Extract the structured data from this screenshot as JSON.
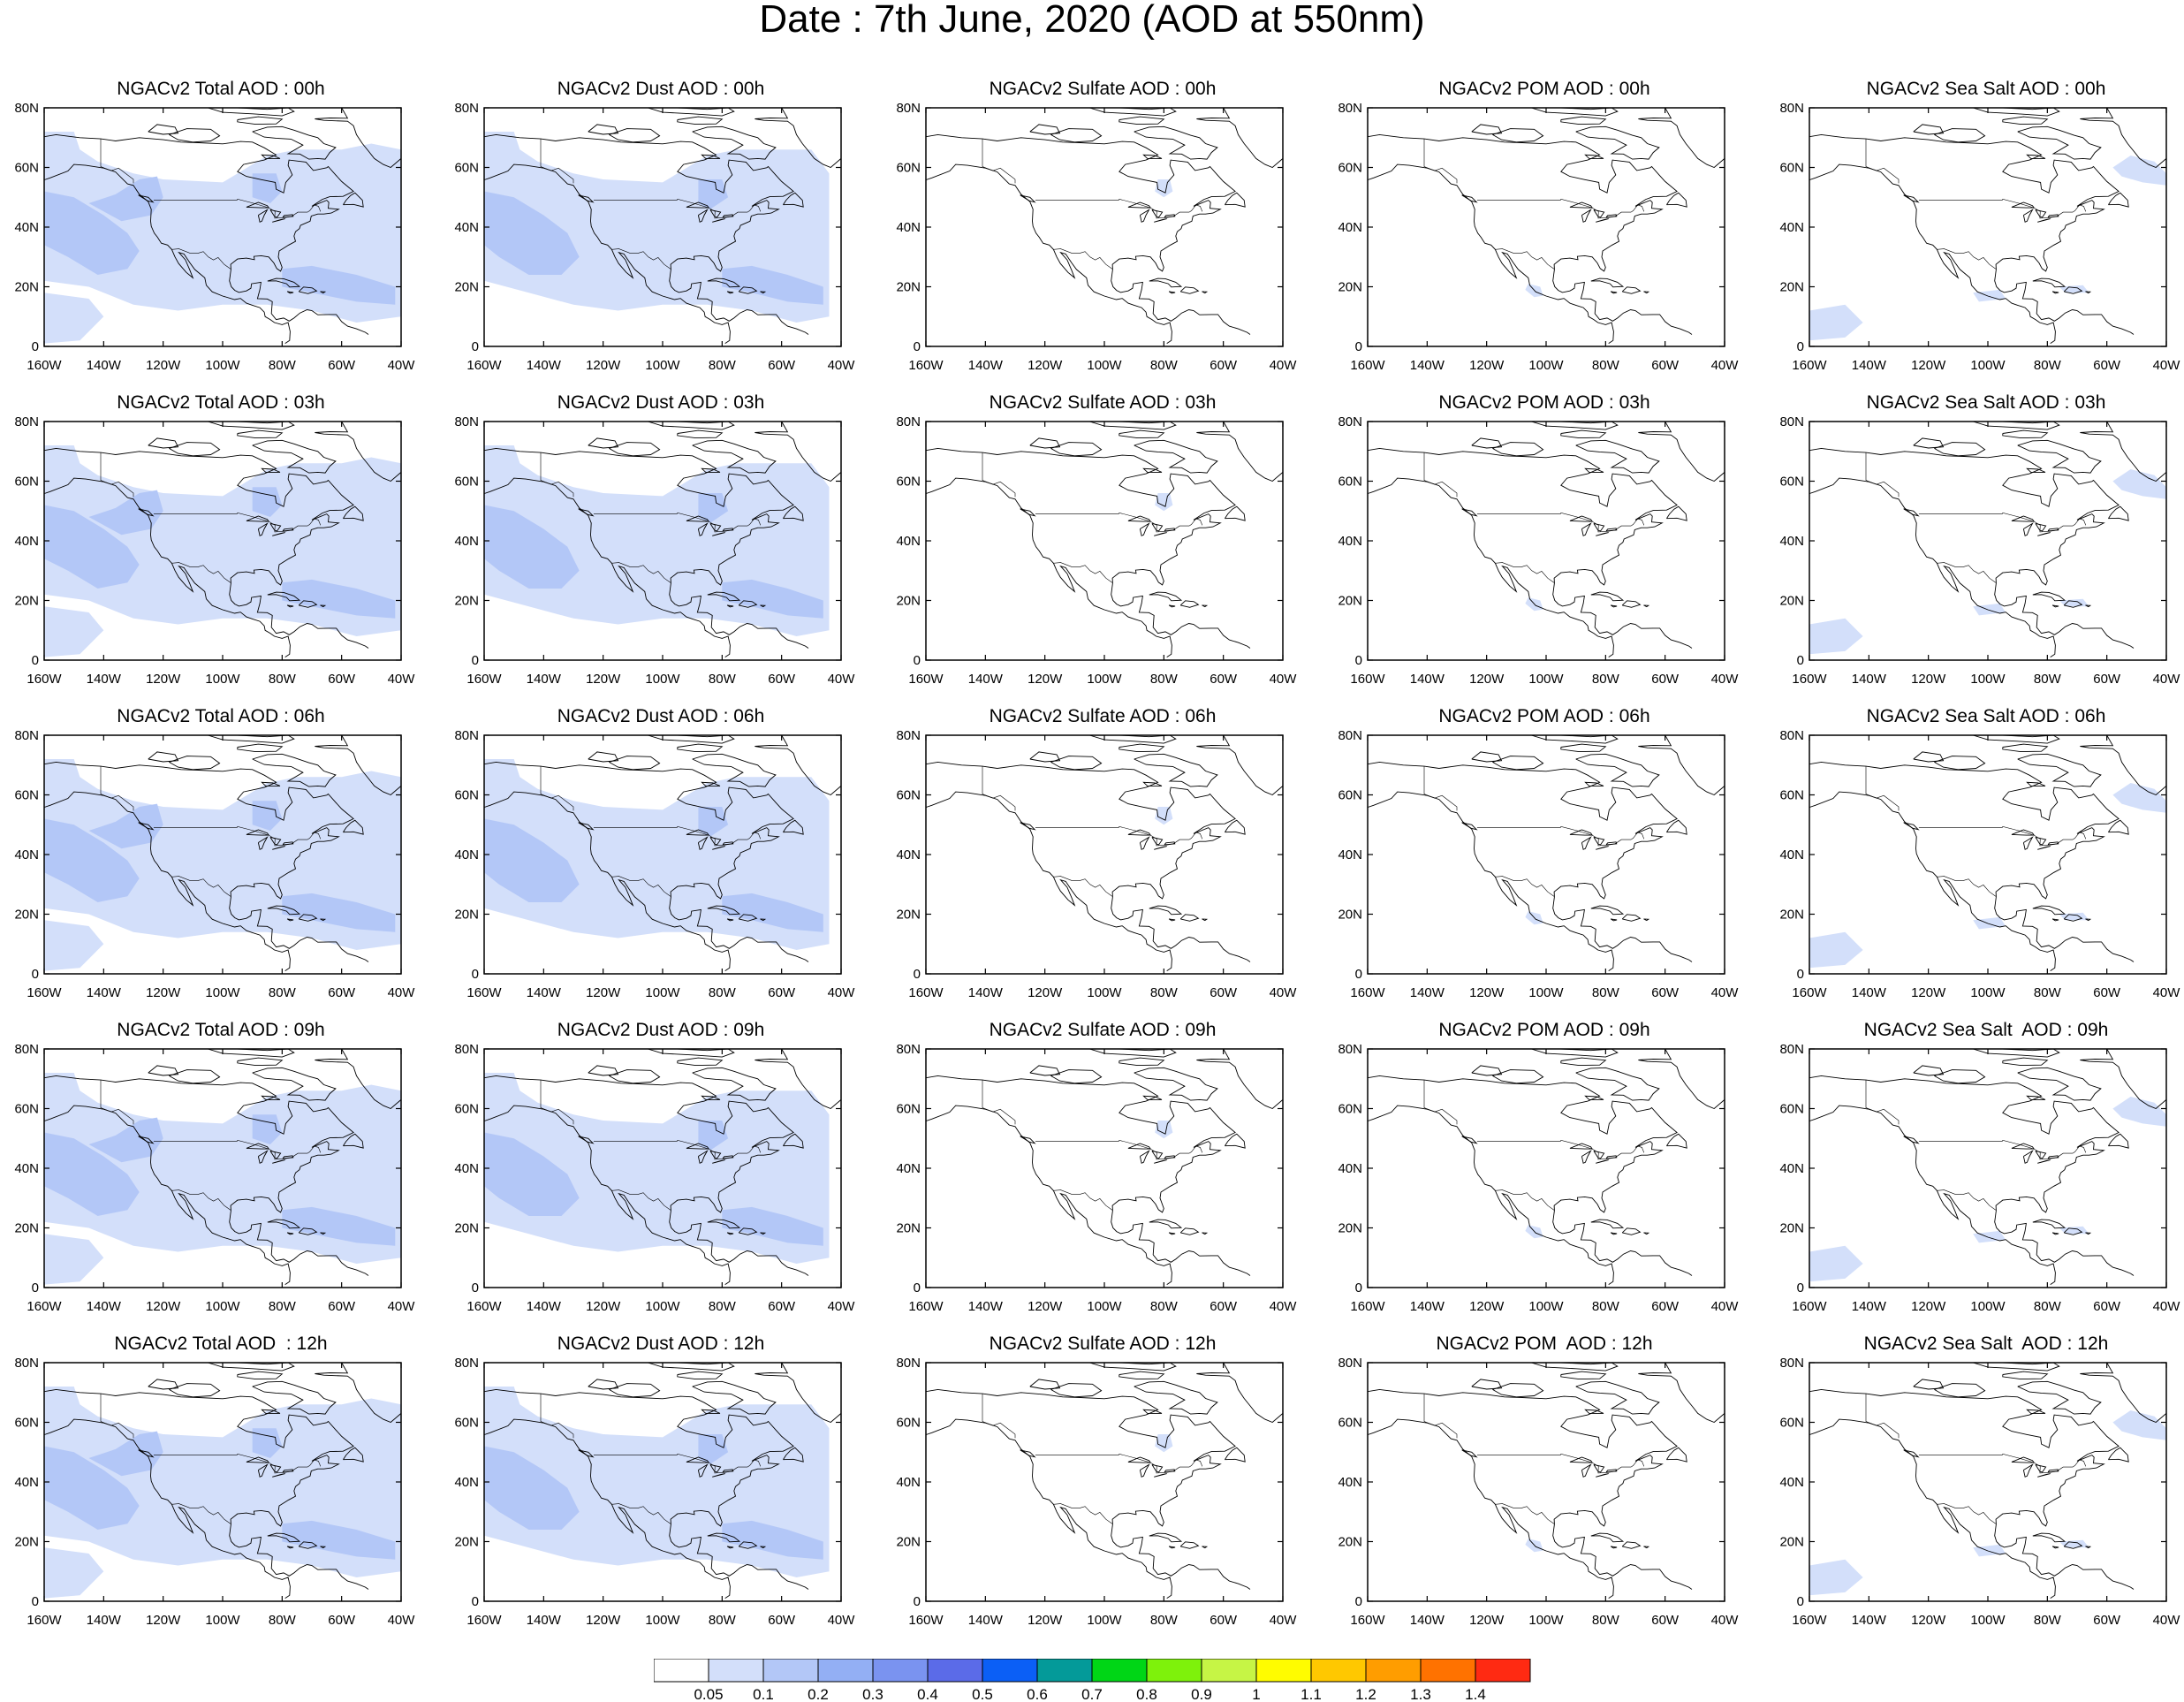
{
  "title": "Date : 7th June, 2020 (AOD at 550nm)",
  "lat_ticks": [
    "80N",
    "60N",
    "40N",
    "20N",
    "0"
  ],
  "lon_ticks": [
    "160W",
    "140W",
    "120W",
    "100W",
    "80W",
    "60W",
    "40W"
  ],
  "panels": [
    [
      {
        "title": "NGACv2 Total AOD : 00h",
        "kind": "total"
      },
      {
        "title": "NGACv2 Dust AOD : 00h",
        "kind": "dust"
      },
      {
        "title": "NGACv2 Sulfate AOD : 00h",
        "kind": "sulfate"
      },
      {
        "title": "NGACv2 POM AOD : 00h",
        "kind": "pom"
      },
      {
        "title": "NGACv2 Sea Salt AOD : 00h",
        "kind": "seasalt"
      }
    ],
    [
      {
        "title": "NGACv2 Total AOD : 03h",
        "kind": "total"
      },
      {
        "title": "NGACv2 Dust AOD : 03h",
        "kind": "dust"
      },
      {
        "title": "NGACv2 Sulfate AOD : 03h",
        "kind": "sulfate"
      },
      {
        "title": "NGACv2 POM AOD : 03h",
        "kind": "pom"
      },
      {
        "title": "NGACv2 Sea Salt AOD : 03h",
        "kind": "seasalt"
      }
    ],
    [
      {
        "title": "NGACv2 Total AOD : 06h",
        "kind": "total"
      },
      {
        "title": "NGACv2 Dust AOD : 06h",
        "kind": "dust"
      },
      {
        "title": "NGACv2 Sulfate AOD : 06h",
        "kind": "sulfate"
      },
      {
        "title": "NGACv2 POM AOD : 06h",
        "kind": "pom"
      },
      {
        "title": "NGACv2 Sea Salt AOD : 06h",
        "kind": "seasalt"
      }
    ],
    [
      {
        "title": "NGACv2 Total AOD : 09h",
        "kind": "total"
      },
      {
        "title": "NGACv2 Dust AOD : 09h",
        "kind": "dust"
      },
      {
        "title": "NGACv2 Sulfate AOD : 09h",
        "kind": "sulfate"
      },
      {
        "title": "NGACv2 POM AOD : 09h",
        "kind": "pom"
      },
      {
        "title": "NGACv2 Sea Salt  AOD : 09h",
        "kind": "seasalt"
      }
    ],
    [
      {
        "title": "NGACv2 Total AOD  : 12h",
        "kind": "total"
      },
      {
        "title": "NGACv2 Dust AOD : 12h",
        "kind": "dust"
      },
      {
        "title": "NGACv2 Sulfate AOD : 12h",
        "kind": "sulfate"
      },
      {
        "title": "NGACv2 POM  AOD : 12h",
        "kind": "pom"
      },
      {
        "title": "NGACv2 Sea Salt  AOD : 12h",
        "kind": "seasalt"
      }
    ]
  ],
  "colorbar": {
    "colors": [
      "#ffffff",
      "#d3dffa",
      "#b3c7f7",
      "#93aff4",
      "#7a93f0",
      "#5b6be8",
      "#0b5ff6",
      "#049a99",
      "#00d616",
      "#7ef20b",
      "#c6f545",
      "#fffc00",
      "#ffc800",
      "#ff9d00",
      "#ff7200",
      "#ff2a12"
    ],
    "labels": [
      "0.05",
      "0.1",
      "0.2",
      "0.3",
      "0.4",
      "0.5",
      "0.6",
      "0.7",
      "0.8",
      "0.9",
      "1",
      "1.1",
      "1.2",
      "1.3",
      "1.4"
    ]
  },
  "colors": {
    "aod_light": "#d3dffa",
    "aod_mid": "#b3c7f7",
    "coast": "#000000",
    "frame": "#000000"
  }
}
